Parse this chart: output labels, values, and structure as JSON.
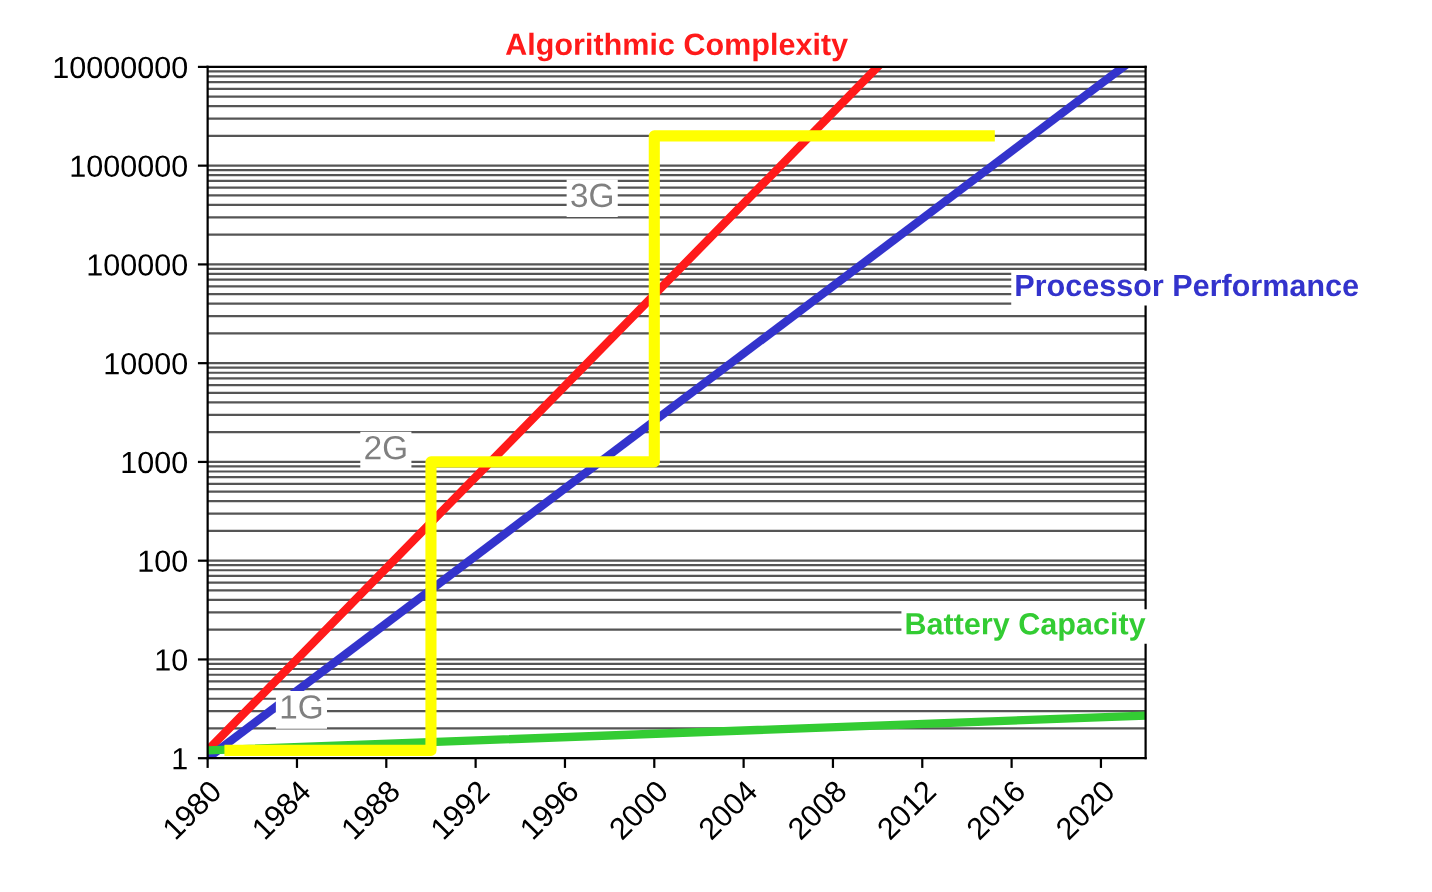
{
  "chart_data": {
    "type": "line",
    "log": "y",
    "grid": "y",
    "legend": false,
    "marker": "none",
    "line_style": "solid",
    "xlim": [
      1980,
      2022
    ],
    "xticks": [
      1980,
      1984,
      1988,
      1992,
      1996,
      2000,
      2004,
      2008,
      2012,
      2016,
      2020
    ],
    "ylim": [
      1,
      10000000
    ],
    "yticks": [
      1,
      10,
      100,
      1000,
      10000,
      100000,
      1000000,
      10000000
    ],
    "series": [
      {
        "name": "Algorithmic Complexity",
        "color": "#ff1a1a",
        "x": [
          1980,
          2010
        ],
        "values": [
          1.2,
          10000000
        ]
      },
      {
        "name": "Processor Performance",
        "color": "#3333cc",
        "x": [
          1980,
          2021
        ],
        "values": [
          1,
          10000000
        ]
      },
      {
        "name": "Battery Capacity",
        "color": "#33cc33",
        "x": [
          1980,
          2022
        ],
        "values": [
          1.2,
          2.7
        ]
      },
      {
        "color": "#ffff00",
        "x": [
          1981,
          1990,
          1990,
          2000,
          2000,
          2015
        ],
        "values": [
          1.2,
          1.2,
          1000,
          1000,
          2000000,
          2000000
        ]
      }
    ],
    "annotations": [
      "1G",
      "2G",
      "3G"
    ]
  }
}
